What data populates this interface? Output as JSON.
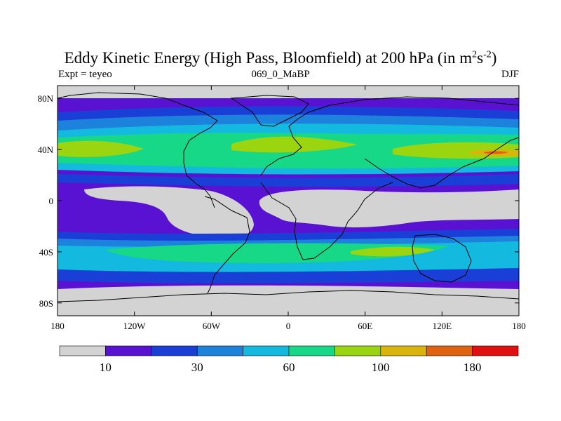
{
  "chart_data": {
    "type": "heatmap",
    "title_main": "Eddy Kinetic Energy (High Pass, Bloomfield) at 200 hPa (in m",
    "title_sup1": "2",
    "title_mid": "s",
    "title_sup2": "-2",
    "title_close": ")",
    "left_label": "Expt = teyeo",
    "center_label": "069_0_MaBP",
    "right_label": "DJF",
    "x_range": [
      -180,
      180
    ],
    "y_range": [
      -90,
      90
    ],
    "x_ticks": [
      {
        "value": -180,
        "label": "180"
      },
      {
        "value": -120,
        "label": "120W"
      },
      {
        "value": -60,
        "label": "60W"
      },
      {
        "value": 0,
        "label": "0"
      },
      {
        "value": 60,
        "label": "60E"
      },
      {
        "value": 120,
        "label": "120E"
      },
      {
        "value": 180,
        "label": "180"
      }
    ],
    "y_ticks": [
      {
        "value": 80,
        "label": "80N"
      },
      {
        "value": 40,
        "label": "40N"
      },
      {
        "value": 0,
        "label": "0"
      },
      {
        "value": -40,
        "label": "40S"
      },
      {
        "value": -80,
        "label": "80S"
      }
    ],
    "colorbar": {
      "colors": [
        "#d3d3d3",
        "#5a12d2",
        "#1a3fd6",
        "#1c82dc",
        "#14b9e0",
        "#16d887",
        "#9bd510",
        "#d9b50c",
        "#e0620e",
        "#e11010"
      ],
      "labels": [
        {
          "after_box": 1,
          "text": "10"
        },
        {
          "after_box": 3,
          "text": "30"
        },
        {
          "after_box": 5,
          "text": "60"
        },
        {
          "after_box": 7,
          "text": "100"
        },
        {
          "after_box": 9,
          "text": "180"
        }
      ]
    },
    "levels_description": "Shaded field of eddy kinetic energy; maxima along 40N and 40S storm tracks, minima in tropics and polar caps"
  }
}
